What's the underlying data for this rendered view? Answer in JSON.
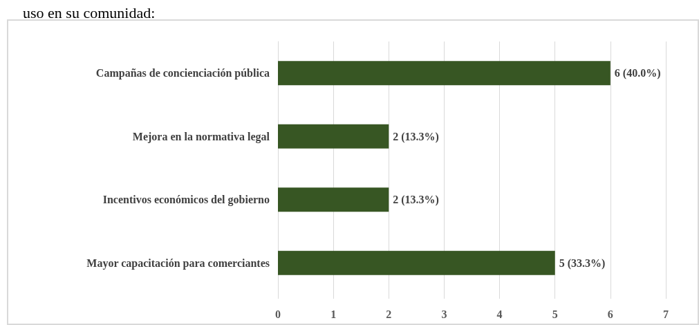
{
  "chart_data": {
    "type": "bar",
    "orientation": "horizontal",
    "title": "uso en su comunidad:",
    "categories": [
      "Campañas de concienciación pública",
      "Mejora en la normativa legal",
      "Incentivos económicos del gobierno",
      "Mayor capacitación para comerciantes"
    ],
    "values": [
      6,
      2,
      2,
      5
    ],
    "value_labels": [
      "6 (40.0%)",
      "2 (13.3%)",
      "2 (13.3%)",
      "5 (33.3%)"
    ],
    "color": "#375623",
    "xlim": [
      0,
      7
    ],
    "xticks": [
      0,
      1,
      2,
      3,
      4,
      5,
      6,
      7
    ],
    "grid": "x"
  }
}
